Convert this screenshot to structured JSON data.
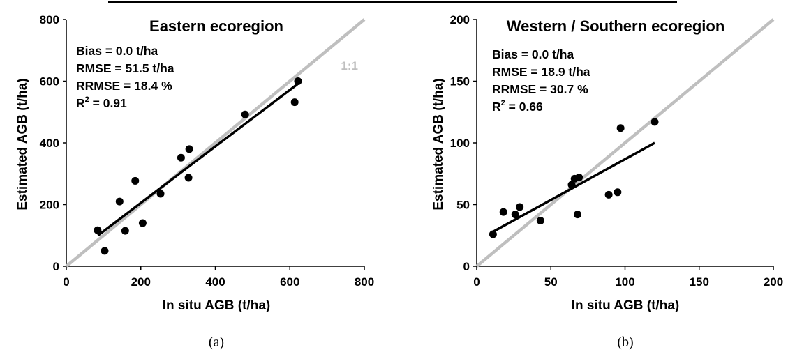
{
  "colors": {
    "identity_line": "#bfbfbf",
    "fit_line": "#000000",
    "points": "#000000",
    "axes": "#000000"
  },
  "chart_data": [
    {
      "type": "scatter",
      "title": "Eastern ecoregion",
      "caption": "(a)",
      "xlabel": "In situ AGB (t/ha)",
      "ylabel": "Estimated AGB (t/ha)",
      "xlim": [
        0,
        800
      ],
      "ylim": [
        0,
        800
      ],
      "xticks": [
        0,
        200,
        400,
        600,
        800
      ],
      "yticks": [
        0,
        200,
        400,
        600,
        800
      ],
      "grid": false,
      "stats": {
        "bias": "Bias = 0.0 t/ha",
        "rmse": "RMSE = 51.5 t/ha",
        "rrmse": "RRMSE = 18.4 %",
        "r2_label": "R",
        "r2_sup": "2",
        "r2_value": " = 0.91"
      },
      "identity_label": "1:1",
      "fit_line": [
        [
          85,
          100
        ],
        [
          620,
          590
        ]
      ],
      "points": [
        [
          84,
          117
        ],
        [
          103,
          50
        ],
        [
          143,
          210
        ],
        [
          158,
          115
        ],
        [
          185,
          277
        ],
        [
          205,
          140
        ],
        [
          253,
          235
        ],
        [
          308,
          352
        ],
        [
          328,
          287
        ],
        [
          330,
          380
        ],
        [
          480,
          492
        ],
        [
          613,
          532
        ],
        [
          622,
          600
        ]
      ]
    },
    {
      "type": "scatter",
      "title": "Western / Southern ecoregion",
      "caption": "(b)",
      "xlabel": "In situ AGB (t/ha)",
      "ylabel": "Estimated AGB (t/ha)",
      "xlim": [
        0,
        200
      ],
      "ylim": [
        0,
        200
      ],
      "xticks": [
        0,
        50,
        100,
        150,
        200
      ],
      "yticks": [
        0,
        50,
        100,
        150,
        200
      ],
      "grid": false,
      "stats": {
        "bias": "Bias = 0.0 t/ha",
        "rmse": "RMSE = 18.9 t/ha",
        "rrmse": "RRMSE = 30.7 %",
        "r2_label": "R",
        "r2_sup": "2",
        "r2_value": " = 0.66"
      },
      "identity_label": "",
      "fit_line": [
        [
          11,
          28
        ],
        [
          120,
          100
        ]
      ],
      "points": [
        [
          11,
          26
        ],
        [
          18,
          44
        ],
        [
          26,
          42
        ],
        [
          29,
          48
        ],
        [
          43,
          37
        ],
        [
          64,
          66
        ],
        [
          66,
          71
        ],
        [
          68,
          42
        ],
        [
          69,
          72
        ],
        [
          89,
          58
        ],
        [
          95,
          60
        ],
        [
          97,
          112
        ],
        [
          120,
          117
        ]
      ]
    }
  ]
}
